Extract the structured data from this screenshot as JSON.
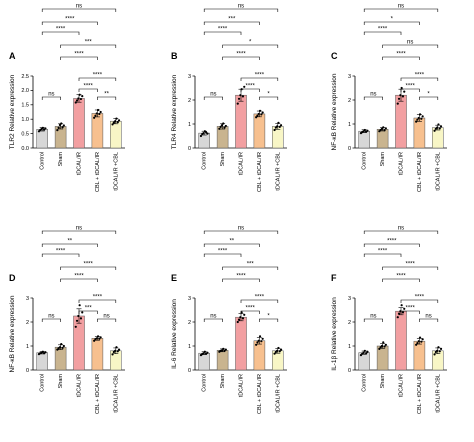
{
  "chart_data": [
    {
      "type": "bar",
      "panel": "A",
      "ylabel": "TLR2 Relative expression",
      "categories": [
        "Control",
        "Sham",
        "tDCAL/IR",
        "CBL + tDCAL/IR",
        "tDCAL/IR +CBL"
      ],
      "values": [
        0.65,
        0.75,
        1.72,
        1.2,
        0.93
      ],
      "errors": [
        0.06,
        0.09,
        0.13,
        0.12,
        0.09
      ],
      "points": [
        [
          0.58,
          0.62,
          0.66,
          0.7,
          0.64,
          0.68
        ],
        [
          0.62,
          0.7,
          0.8,
          0.85,
          0.72,
          0.78
        ],
        [
          1.58,
          1.65,
          1.72,
          1.85,
          1.7,
          1.8
        ],
        [
          1.05,
          1.12,
          1.2,
          1.32,
          1.18,
          1.25
        ],
        [
          0.82,
          0.88,
          0.93,
          1.02,
          0.9,
          0.96
        ]
      ],
      "ylim": [
        0,
        2.5
      ],
      "yticks": [
        0,
        0.5,
        1.0,
        1.5,
        2.0,
        2.5
      ],
      "comparisons": [
        {
          "from": 0,
          "to": 1,
          "label": "ns"
        },
        {
          "from": 2,
          "to": 3,
          "label": "****"
        },
        {
          "from": 3,
          "to": 4,
          "label": "**"
        },
        {
          "from": 2,
          "to": 4,
          "label": "****"
        },
        {
          "from": 1,
          "to": 3,
          "label": "****"
        },
        {
          "from": 1,
          "to": 4,
          "label": "***"
        },
        {
          "from": 0,
          "to": 2,
          "label": "****"
        },
        {
          "from": 0,
          "to": 3,
          "label": "****"
        },
        {
          "from": 0,
          "to": 4,
          "label": "ns"
        }
      ]
    },
    {
      "type": "bar",
      "panel": "B",
      "ylabel": "TLR4 Relative expression",
      "categories": [
        "Control",
        "Sham",
        "tDCAL/IR",
        "CBL + tDCAL/IR",
        "tDCAL/IR +CBL"
      ],
      "values": [
        0.62,
        0.9,
        2.2,
        1.42,
        0.9
      ],
      "errors": [
        0.08,
        0.11,
        0.25,
        0.12,
        0.12
      ],
      "points": [
        [
          0.5,
          0.58,
          0.62,
          0.7,
          0.65,
          0.6
        ],
        [
          0.8,
          0.88,
          0.95,
          1.02,
          0.85,
          0.92
        ],
        [
          1.85,
          2.05,
          2.2,
          2.45,
          2.15,
          2.55
        ],
        [
          1.28,
          1.35,
          1.42,
          1.55,
          1.4,
          1.48
        ],
        [
          0.75,
          0.85,
          0.9,
          1.05,
          0.88,
          0.95
        ]
      ],
      "ylim": [
        0,
        3
      ],
      "yticks": [
        0,
        1,
        2,
        3
      ],
      "comparisons": [
        {
          "from": 0,
          "to": 1,
          "label": "ns"
        },
        {
          "from": 2,
          "to": 3,
          "label": "****"
        },
        {
          "from": 3,
          "to": 4,
          "label": "*"
        },
        {
          "from": 2,
          "to": 4,
          "label": "****"
        },
        {
          "from": 1,
          "to": 3,
          "label": "****"
        },
        {
          "from": 1,
          "to": 4,
          "label": "*"
        },
        {
          "from": 0,
          "to": 2,
          "label": "****"
        },
        {
          "from": 0,
          "to": 3,
          "label": "***"
        },
        {
          "from": 0,
          "to": 4,
          "label": "ns"
        }
      ]
    },
    {
      "type": "bar",
      "panel": "C",
      "ylabel": "NF-κB Relative expression",
      "categories": [
        "Control",
        "Sham",
        "tDCAL/IR",
        "CBL + tDCAL/IR",
        "tDCAL/IR +CBL"
      ],
      "values": [
        0.7,
        0.78,
        2.2,
        1.25,
        0.85
      ],
      "errors": [
        0.06,
        0.07,
        0.25,
        0.14,
        0.1
      ],
      "points": [
        [
          0.62,
          0.66,
          0.7,
          0.75,
          0.68,
          0.72
        ],
        [
          0.7,
          0.75,
          0.8,
          0.86,
          0.74,
          0.82
        ],
        [
          1.85,
          2.05,
          2.2,
          2.5,
          2.15,
          2.35
        ],
        [
          1.1,
          1.18,
          1.25,
          1.4,
          1.22,
          1.32
        ],
        [
          0.72,
          0.8,
          0.85,
          0.98,
          0.82,
          0.9
        ]
      ],
      "ylim": [
        0,
        3
      ],
      "yticks": [
        0,
        1,
        2,
        3
      ],
      "comparisons": [
        {
          "from": 0,
          "to": 1,
          "label": "ns"
        },
        {
          "from": 2,
          "to": 3,
          "label": "****"
        },
        {
          "from": 3,
          "to": 4,
          "label": "*"
        },
        {
          "from": 2,
          "to": 4,
          "label": "****"
        },
        {
          "from": 1,
          "to": 3,
          "label": "****"
        },
        {
          "from": 1,
          "to": 4,
          "label": "ns"
        },
        {
          "from": 0,
          "to": 2,
          "label": "****"
        },
        {
          "from": 0,
          "to": 3,
          "label": "*"
        },
        {
          "from": 0,
          "to": 4,
          "label": "ns"
        }
      ]
    },
    {
      "type": "bar",
      "panel": "D",
      "ylabel": "NF-κB Relative expression",
      "categories": [
        "Control",
        "Sham",
        "tDCAL/IR",
        "CBL + tDCAL/IR",
        "tDCAL/IR +CBL"
      ],
      "values": [
        0.72,
        0.95,
        2.25,
        1.32,
        0.8
      ],
      "errors": [
        0.05,
        0.1,
        0.3,
        0.08,
        0.12
      ],
      "points": [
        [
          0.66,
          0.7,
          0.72,
          0.76,
          0.7,
          0.74
        ],
        [
          0.85,
          0.9,
          0.95,
          1.08,
          0.92,
          1.0
        ],
        [
          1.8,
          2.05,
          2.25,
          2.7,
          2.15,
          2.4
        ],
        [
          1.22,
          1.28,
          1.32,
          1.4,
          1.3,
          1.36
        ],
        [
          0.65,
          0.75,
          0.8,
          0.95,
          0.78,
          0.85
        ]
      ],
      "ylim": [
        0,
        3
      ],
      "yticks": [
        0,
        1,
        2,
        3
      ],
      "comparisons": [
        {
          "from": 0,
          "to": 1,
          "label": "ns"
        },
        {
          "from": 2,
          "to": 3,
          "label": "***"
        },
        {
          "from": 3,
          "to": 4,
          "label": "ns"
        },
        {
          "from": 2,
          "to": 4,
          "label": "****"
        },
        {
          "from": 1,
          "to": 3,
          "label": "****"
        },
        {
          "from": 1,
          "to": 4,
          "label": "****"
        },
        {
          "from": 0,
          "to": 2,
          "label": "****"
        },
        {
          "from": 0,
          "to": 3,
          "label": "**"
        },
        {
          "from": 0,
          "to": 4,
          "label": "ns"
        }
      ]
    },
    {
      "type": "bar",
      "panel": "E",
      "ylabel": "IL-6 Relative expression",
      "categories": [
        "Control",
        "Sham",
        "tDCAL/IR",
        "CBL + tDCAL/IR",
        "tDCAL/IR +CBL"
      ],
      "values": [
        0.7,
        0.82,
        2.2,
        1.22,
        0.8
      ],
      "errors": [
        0.06,
        0.06,
        0.15,
        0.14,
        0.1
      ],
      "points": [
        [
          0.62,
          0.66,
          0.7,
          0.76,
          0.68,
          0.72
        ],
        [
          0.76,
          0.8,
          0.82,
          0.88,
          0.8,
          0.85
        ],
        [
          2.0,
          2.1,
          2.2,
          2.4,
          2.15,
          2.3
        ],
        [
          1.05,
          1.15,
          1.22,
          1.4,
          1.2,
          1.3
        ],
        [
          0.68,
          0.75,
          0.8,
          0.92,
          0.78,
          0.85
        ]
      ],
      "ylim": [
        0,
        3
      ],
      "yticks": [
        0,
        1,
        2,
        3
      ],
      "comparisons": [
        {
          "from": 0,
          "to": 1,
          "label": "ns"
        },
        {
          "from": 2,
          "to": 3,
          "label": "****"
        },
        {
          "from": 3,
          "to": 4,
          "label": "*"
        },
        {
          "from": 2,
          "to": 4,
          "label": "****"
        },
        {
          "from": 1,
          "to": 3,
          "label": "****"
        },
        {
          "from": 1,
          "to": 4,
          "label": "***"
        },
        {
          "from": 0,
          "to": 2,
          "label": "****"
        },
        {
          "from": 0,
          "to": 3,
          "label": "**"
        },
        {
          "from": 0,
          "to": 4,
          "label": "ns"
        }
      ]
    },
    {
      "type": "bar",
      "panel": "F",
      "ylabel": "IL-1β Relative expression",
      "categories": [
        "Control",
        "Sham",
        "tDCAL/IR",
        "CBL + tDCAL/IR",
        "tDCAL/IR +CBL"
      ],
      "values": [
        0.72,
        1.0,
        2.45,
        1.2,
        0.8
      ],
      "errors": [
        0.07,
        0.1,
        0.15,
        0.12,
        0.12
      ],
      "points": [
        [
          0.62,
          0.68,
          0.72,
          0.8,
          0.7,
          0.76
        ],
        [
          0.88,
          0.95,
          1.0,
          1.15,
          0.98,
          1.05
        ],
        [
          2.2,
          2.35,
          2.45,
          2.7,
          2.4,
          2.55
        ],
        [
          1.05,
          1.12,
          1.2,
          1.35,
          1.18,
          1.28
        ],
        [
          0.65,
          0.75,
          0.8,
          0.95,
          0.78,
          0.88
        ]
      ],
      "ylim": [
        0,
        3
      ],
      "yticks": [
        0,
        1,
        2,
        3
      ],
      "comparisons": [
        {
          "from": 0,
          "to": 1,
          "label": "ns"
        },
        {
          "from": 2,
          "to": 3,
          "label": "****"
        },
        {
          "from": 3,
          "to": 4,
          "label": "ns"
        },
        {
          "from": 2,
          "to": 4,
          "label": "****"
        },
        {
          "from": 1,
          "to": 3,
          "label": "****"
        },
        {
          "from": 1,
          "to": 4,
          "label": "****"
        },
        {
          "from": 0,
          "to": 2,
          "label": "****"
        },
        {
          "from": 0,
          "to": 3,
          "label": "****"
        },
        {
          "from": 0,
          "to": 4,
          "label": "ns"
        }
      ]
    }
  ],
  "colors": {
    "bars": [
      "#d7d7d7",
      "#c9b48f",
      "#f29fa1",
      "#f7c08f",
      "#f8f6c6"
    ],
    "bar_stroke": "#555555",
    "points": "#000000"
  }
}
